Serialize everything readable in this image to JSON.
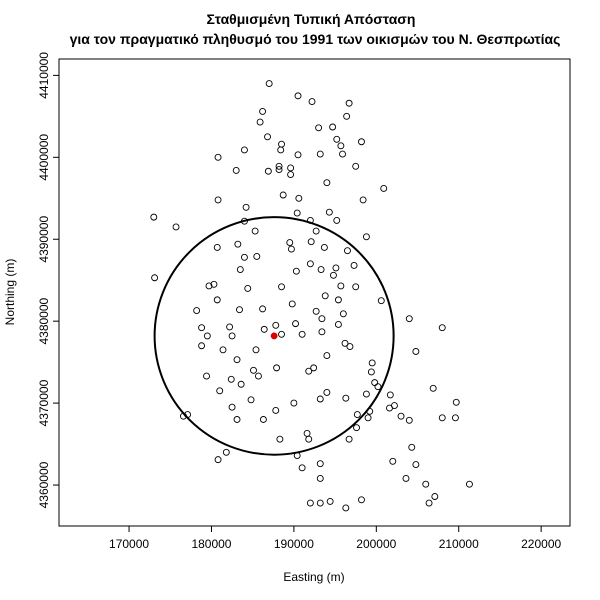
{
  "chart_data": {
    "type": "scatter",
    "title_line1": "Σταθμισμένη Τυπική Απόσταση",
    "title_line2": "για τον πραγματικό πληθυσμό του 1991 των οικισμών του Ν. Θεσπρωτίας",
    "xlabel": "Easting (m)",
    "ylabel": "Northing (m)",
    "xlim": [
      161500,
      223500
    ],
    "ylim": [
      4355000,
      4412000
    ],
    "xticks": [
      170000,
      180000,
      190000,
      200000,
      210000,
      220000
    ],
    "yticks": [
      4360000,
      4370000,
      4380000,
      4390000,
      4400000,
      4410000
    ],
    "xtick_labels": [
      "170000",
      "180000",
      "190000",
      "200000",
      "210000",
      "220000"
    ],
    "ytick_labels": [
      "4360000",
      "4370000",
      "4380000",
      "4390000",
      "4400000",
      "4410000"
    ],
    "grid": false,
    "legend": "none",
    "colors": {
      "points": "#000000",
      "center": "#dd0000",
      "circle": "#000000"
    },
    "weighted_center": {
      "x": 187600,
      "y": 4378200
    },
    "circle_radius": 14500,
    "points": [
      [
        187000,
        4409000
      ],
      [
        190500,
        4407500
      ],
      [
        192200,
        4406800
      ],
      [
        196700,
        4406600
      ],
      [
        186200,
        4405600
      ],
      [
        196400,
        4405000
      ],
      [
        185900,
        4404300
      ],
      [
        193000,
        4403600
      ],
      [
        194700,
        4403700
      ],
      [
        186800,
        4402500
      ],
      [
        195200,
        4402200
      ],
      [
        198200,
        4401900
      ],
      [
        188500,
        4401600
      ],
      [
        195700,
        4401400
      ],
      [
        184000,
        4400900
      ],
      [
        188400,
        4400900
      ],
      [
        195900,
        4400400
      ],
      [
        180800,
        4400000
      ],
      [
        190500,
        4400300
      ],
      [
        193200,
        4400400
      ],
      [
        197500,
        4398900
      ],
      [
        183000,
        4398400
      ],
      [
        186900,
        4398300
      ],
      [
        188200,
        4398900
      ],
      [
        189600,
        4398700
      ],
      [
        188200,
        4398500
      ],
      [
        189600,
        4397900
      ],
      [
        194000,
        4396900
      ],
      [
        200900,
        4396200
      ],
      [
        188700,
        4395400
      ],
      [
        190600,
        4395000
      ],
      [
        180800,
        4394800
      ],
      [
        198400,
        4394800
      ],
      [
        184200,
        4393900
      ],
      [
        190400,
        4393200
      ],
      [
        194300,
        4393300
      ],
      [
        173000,
        4392700
      ],
      [
        184000,
        4392200
      ],
      [
        192000,
        4392300
      ],
      [
        195200,
        4392300
      ],
      [
        175700,
        4391500
      ],
      [
        185300,
        4391000
      ],
      [
        192700,
        4391000
      ],
      [
        198800,
        4390300
      ],
      [
        189500,
        4389600
      ],
      [
        183200,
        4389400
      ],
      [
        192100,
        4389700
      ],
      [
        193700,
        4389000
      ],
      [
        180700,
        4389000
      ],
      [
        189700,
        4388800
      ],
      [
        196500,
        4388600
      ],
      [
        184000,
        4387800
      ],
      [
        185500,
        4387900
      ],
      [
        192000,
        4387000
      ],
      [
        197300,
        4386800
      ],
      [
        193300,
        4386300
      ],
      [
        195100,
        4386500
      ],
      [
        190300,
        4386100
      ],
      [
        173100,
        4385300
      ],
      [
        194800,
        4385600
      ],
      [
        183500,
        4386300
      ],
      [
        180300,
        4384500
      ],
      [
        179700,
        4384300
      ],
      [
        184400,
        4384000
      ],
      [
        188500,
        4384200
      ],
      [
        195700,
        4384300
      ],
      [
        197500,
        4384200
      ],
      [
        193800,
        4383100
      ],
      [
        195400,
        4382600
      ],
      [
        200600,
        4382500
      ],
      [
        180700,
        4382600
      ],
      [
        189800,
        4382100
      ],
      [
        178200,
        4381300
      ],
      [
        183400,
        4381400
      ],
      [
        186200,
        4381500
      ],
      [
        192700,
        4381200
      ],
      [
        196000,
        4380900
      ],
      [
        204000,
        4380300
      ],
      [
        193400,
        4380300
      ],
      [
        187800,
        4379500
      ],
      [
        190200,
        4379700
      ],
      [
        195400,
        4379600
      ],
      [
        178800,
        4379200
      ],
      [
        182200,
        4379300
      ],
      [
        186400,
        4379000
      ],
      [
        208000,
        4379200
      ],
      [
        193400,
        4378700
      ],
      [
        179500,
        4378200
      ],
      [
        182500,
        4378200
      ],
      [
        188500,
        4378400
      ],
      [
        191000,
        4378400
      ],
      [
        178800,
        4377000
      ],
      [
        196200,
        4377300
      ],
      [
        196800,
        4376900
      ],
      [
        181400,
        4376500
      ],
      [
        185400,
        4376500
      ],
      [
        204800,
        4376300
      ],
      [
        194000,
        4375800
      ],
      [
        183100,
        4375300
      ],
      [
        199500,
        4374900
      ],
      [
        187900,
        4374300
      ],
      [
        192400,
        4374300
      ],
      [
        185100,
        4374000
      ],
      [
        191800,
        4373900
      ],
      [
        199400,
        4373800
      ],
      [
        185700,
        4373300
      ],
      [
        179400,
        4373300
      ],
      [
        182400,
        4372900
      ],
      [
        199800,
        4372500
      ],
      [
        183600,
        4372300
      ],
      [
        206900,
        4371800
      ],
      [
        200200,
        4372000
      ],
      [
        181000,
        4371500
      ],
      [
        194000,
        4371300
      ],
      [
        198800,
        4371100
      ],
      [
        201700,
        4371000
      ],
      [
        193200,
        4370500
      ],
      [
        196300,
        4370600
      ],
      [
        184800,
        4370400
      ],
      [
        190000,
        4370000
      ],
      [
        209700,
        4370100
      ],
      [
        182500,
        4369500
      ],
      [
        201600,
        4369400
      ],
      [
        202200,
        4369700
      ],
      [
        187800,
        4369100
      ],
      [
        199200,
        4369000
      ],
      [
        197700,
        4368600
      ],
      [
        203000,
        4368400
      ],
      [
        176600,
        4368400
      ],
      [
        177100,
        4368600
      ],
      [
        199000,
        4368200
      ],
      [
        204000,
        4367900
      ],
      [
        208000,
        4368200
      ],
      [
        209600,
        4368200
      ],
      [
        183100,
        4368000
      ],
      [
        186300,
        4368000
      ],
      [
        197600,
        4367000
      ],
      [
        191600,
        4366300
      ],
      [
        191800,
        4365600
      ],
      [
        196700,
        4365600
      ],
      [
        188300,
        4365600
      ],
      [
        204300,
        4364600
      ],
      [
        181800,
        4364000
      ],
      [
        190400,
        4363600
      ],
      [
        180800,
        4363100
      ],
      [
        193200,
        4362600
      ],
      [
        202000,
        4362900
      ],
      [
        204800,
        4362500
      ],
      [
        191000,
        4362100
      ],
      [
        193200,
        4360800
      ],
      [
        203600,
        4360800
      ],
      [
        206000,
        4360100
      ],
      [
        211300,
        4360100
      ],
      [
        207100,
        4358600
      ],
      [
        192000,
        4357800
      ],
      [
        193200,
        4357800
      ],
      [
        194400,
        4358000
      ],
      [
        198200,
        4358200
      ],
      [
        196300,
        4357200
      ],
      [
        206400,
        4357800
      ]
    ]
  }
}
